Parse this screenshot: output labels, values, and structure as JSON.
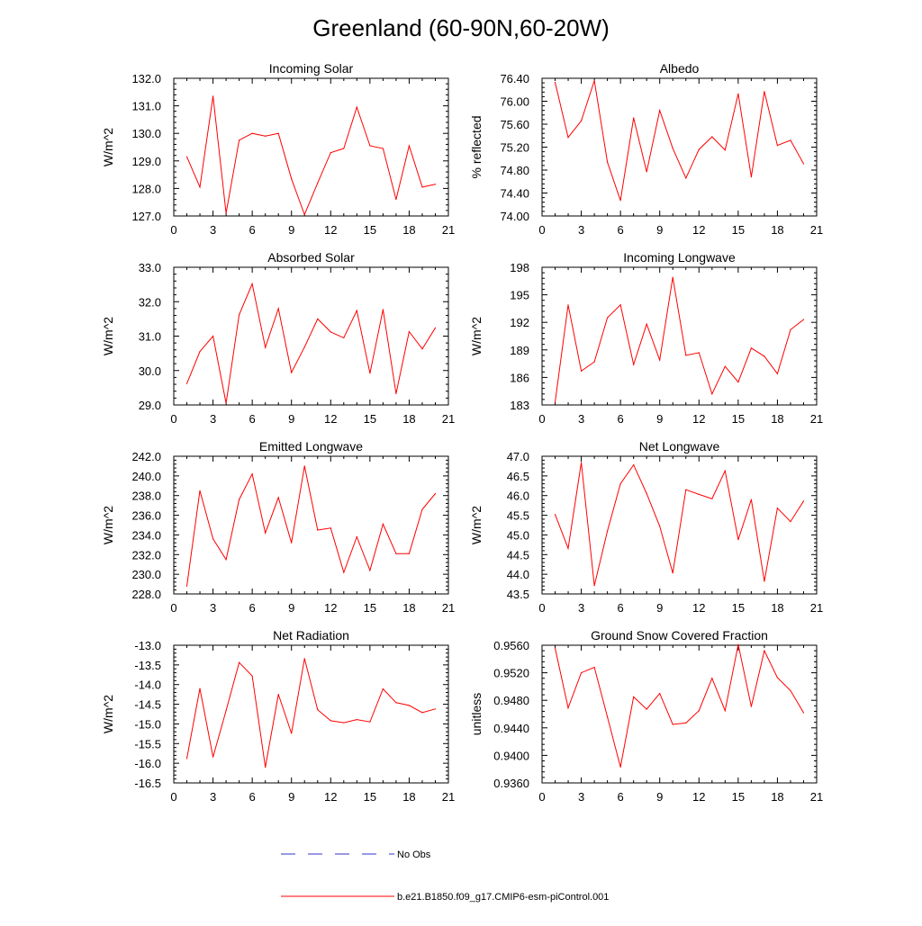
{
  "title": "Greenland (60-90N,60-20W)",
  "colors": {
    "model": "#ff0000",
    "obs": "#3333cc",
    "axis": "#000000"
  },
  "legend": {
    "obs_label": "No Obs",
    "model_label": "b.e21.B1850.f09_g17.CMIP6-esm-piControl.001"
  },
  "chart_data": [
    {
      "type": "line",
      "title": "Incoming Solar",
      "ylabel": "W/m^2",
      "xlim": [
        0,
        21
      ],
      "xticks": [
        0,
        3,
        6,
        9,
        12,
        15,
        18,
        21
      ],
      "ylim": [
        127.0,
        132.0
      ],
      "yticks": [
        "127.0",
        "128.0",
        "129.0",
        "130.0",
        "131.0",
        "132.0"
      ],
      "x": [
        1,
        2,
        3,
        4,
        5,
        6,
        7,
        8,
        9,
        10,
        11,
        12,
        13,
        14,
        15,
        16,
        17,
        18,
        19,
        20
      ],
      "values": [
        129.15,
        128.05,
        131.35,
        127.1,
        129.75,
        130.0,
        129.9,
        130.0,
        128.35,
        127.05,
        128.2,
        129.3,
        129.45,
        130.95,
        129.55,
        129.45,
        127.6,
        129.55,
        128.05,
        128.15
      ]
    },
    {
      "type": "line",
      "title": "Albedo",
      "ylabel": "% reflected",
      "xlim": [
        0,
        21
      ],
      "xticks": [
        0,
        3,
        6,
        9,
        12,
        15,
        18,
        21
      ],
      "ylim": [
        74.0,
        76.4
      ],
      "yticks": [
        "74.00",
        "74.40",
        "74.80",
        "75.20",
        "75.60",
        "76.00",
        "76.40"
      ],
      "x": [
        1,
        2,
        3,
        4,
        5,
        6,
        7,
        8,
        9,
        10,
        11,
        12,
        13,
        14,
        15,
        16,
        17,
        18,
        19,
        20
      ],
      "values": [
        76.33,
        75.37,
        75.66,
        76.36,
        74.94,
        74.27,
        75.71,
        74.77,
        75.84,
        75.18,
        74.66,
        75.16,
        75.38,
        75.15,
        76.13,
        74.68,
        76.17,
        75.23,
        75.32,
        74.91
      ]
    },
    {
      "type": "line",
      "title": "Absorbed Solar",
      "ylabel": "W/m^2",
      "xlim": [
        0,
        21
      ],
      "xticks": [
        0,
        3,
        6,
        9,
        12,
        15,
        18,
        21
      ],
      "ylim": [
        29.0,
        33.0
      ],
      "yticks": [
        "29.0",
        "30.0",
        "31.0",
        "32.0",
        "33.0"
      ],
      "x": [
        1,
        2,
        3,
        4,
        5,
        6,
        7,
        8,
        9,
        10,
        11,
        12,
        13,
        14,
        15,
        16,
        17,
        18,
        19,
        20
      ],
      "values": [
        29.62,
        30.55,
        31.0,
        29.05,
        31.62,
        32.52,
        30.67,
        31.8,
        29.94,
        30.68,
        31.5,
        31.12,
        30.95,
        31.74,
        29.92,
        31.77,
        29.33,
        31.13,
        30.63,
        31.24
      ]
    },
    {
      "type": "line",
      "title": "Incoming Longwave",
      "ylabel": "W/m^2",
      "xlim": [
        0,
        21
      ],
      "xticks": [
        0,
        3,
        6,
        9,
        12,
        15,
        18,
        21
      ],
      "ylim": [
        183,
        198
      ],
      "yticks": [
        "183",
        "186",
        "189",
        "192",
        "195",
        "198"
      ],
      "x": [
        1,
        2,
        3,
        4,
        5,
        6,
        7,
        8,
        9,
        10,
        11,
        12,
        13,
        14,
        15,
        16,
        17,
        18,
        19,
        20
      ],
      "values": [
        183.3,
        193.9,
        186.7,
        187.7,
        192.5,
        193.9,
        187.4,
        191.8,
        187.9,
        196.9,
        188.4,
        188.7,
        184.2,
        187.2,
        185.5,
        189.2,
        188.3,
        186.4,
        191.2,
        192.3
      ]
    },
    {
      "type": "line",
      "title": "Emitted Longwave",
      "ylabel": "W/m^2",
      "xlim": [
        0,
        21
      ],
      "xticks": [
        0,
        3,
        6,
        9,
        12,
        15,
        18,
        21
      ],
      "ylim": [
        228.0,
        242.0
      ],
      "yticks": [
        "228.0",
        "230.0",
        "232.0",
        "234.0",
        "236.0",
        "238.0",
        "240.0",
        "242.0"
      ],
      "x": [
        1,
        2,
        3,
        4,
        5,
        6,
        7,
        8,
        9,
        10,
        11,
        12,
        13,
        14,
        15,
        16,
        17,
        18,
        19,
        20
      ],
      "values": [
        228.8,
        238.5,
        233.6,
        231.5,
        237.6,
        240.2,
        234.2,
        237.8,
        233.2,
        241.0,
        234.5,
        234.7,
        230.2,
        233.8,
        230.4,
        235.1,
        232.1,
        232.1,
        236.6,
        238.2
      ]
    },
    {
      "type": "line",
      "title": "Net Longwave",
      "ylabel": "W/m^2",
      "xlim": [
        0,
        21
      ],
      "xticks": [
        0,
        3,
        6,
        9,
        12,
        15,
        18,
        21
      ],
      "ylim": [
        43.5,
        47.0
      ],
      "yticks": [
        "43.5",
        "44.0",
        "44.5",
        "45.0",
        "45.5",
        "46.0",
        "46.5",
        "47.0"
      ],
      "x": [
        1,
        2,
        3,
        4,
        5,
        6,
        7,
        8,
        9,
        10,
        11,
        12,
        13,
        14,
        15,
        16,
        17,
        18,
        19,
        20
      ],
      "values": [
        45.52,
        44.66,
        46.84,
        43.71,
        45.1,
        46.3,
        46.78,
        46.05,
        45.22,
        44.03,
        46.15,
        46.03,
        45.92,
        46.63,
        44.88,
        45.9,
        43.82,
        45.68,
        45.34,
        45.86
      ]
    },
    {
      "type": "line",
      "title": "Net Radiation",
      "ylabel": "W/m^2",
      "xlim": [
        0,
        21
      ],
      "xticks": [
        0,
        3,
        6,
        9,
        12,
        15,
        18,
        21
      ],
      "ylim": [
        -16.5,
        -13.0
      ],
      "yticks": [
        "-16.5",
        "-16.0",
        "-15.5",
        "-15.0",
        "-14.5",
        "-14.0",
        "-13.5",
        "-13.0"
      ],
      "x": [
        1,
        2,
        3,
        4,
        5,
        6,
        7,
        8,
        9,
        10,
        11,
        12,
        13,
        14,
        15,
        16,
        17,
        18,
        19,
        20
      ],
      "values": [
        -15.88,
        -14.1,
        -15.84,
        -14.66,
        -13.44,
        -13.78,
        -16.1,
        -14.25,
        -15.24,
        -13.34,
        -14.64,
        -14.92,
        -14.97,
        -14.89,
        -14.95,
        -14.11,
        -14.46,
        -14.53,
        -14.71,
        -14.62
      ]
    },
    {
      "type": "line",
      "title": "Ground Snow Covered Fraction",
      "ylabel": "unitless",
      "xlim": [
        0,
        21
      ],
      "xticks": [
        0,
        3,
        6,
        9,
        12,
        15,
        18,
        21
      ],
      "ylim": [
        0.936,
        0.956
      ],
      "yticks": [
        "0.9360",
        "0.9400",
        "0.9440",
        "0.9480",
        "0.9520",
        "0.9560"
      ],
      "x": [
        1,
        2,
        3,
        4,
        5,
        6,
        7,
        8,
        9,
        10,
        11,
        12,
        13,
        14,
        15,
        16,
        17,
        18,
        19,
        20
      ],
      "values": [
        0.9556,
        0.9469,
        0.952,
        0.9528,
        0.9456,
        0.9383,
        0.9485,
        0.9467,
        0.949,
        0.9445,
        0.9447,
        0.9465,
        0.9512,
        0.9465,
        0.9561,
        0.9471,
        0.9552,
        0.9513,
        0.9494,
        0.9462
      ]
    }
  ]
}
